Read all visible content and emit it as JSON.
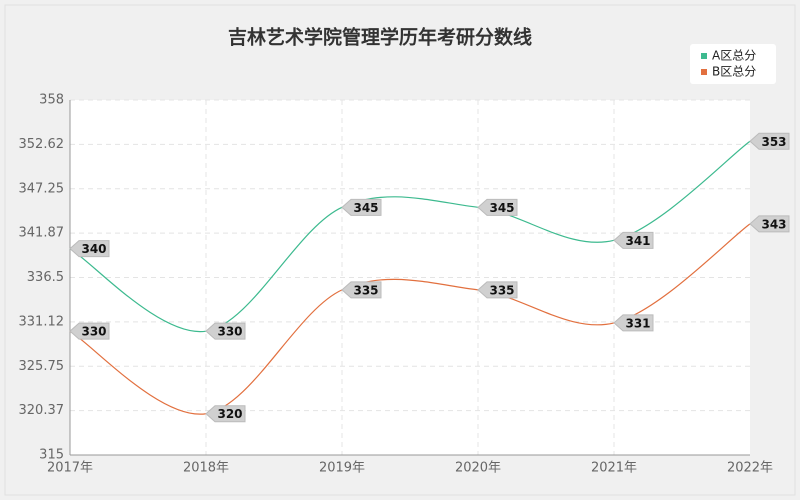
{
  "chart_data": {
    "type": "line",
    "title": "吉林艺术学院管理学历年考研分数线",
    "categories": [
      "2017年",
      "2018年",
      "2019年",
      "2020年",
      "2021年",
      "2022年"
    ],
    "series": [
      {
        "name": "A区总分",
        "color": "#3dba8f",
        "values": [
          340,
          330,
          345,
          345,
          341,
          353
        ]
      },
      {
        "name": "B区总分",
        "color": "#e2703f",
        "values": [
          330,
          320,
          335,
          335,
          331,
          343
        ]
      }
    ],
    "ylim": [
      315,
      358
    ],
    "yticks": [
      315,
      320.37,
      325.75,
      331.12,
      336.5,
      341.87,
      347.25,
      352.62,
      358
    ],
    "grid": true,
    "smooth": true,
    "legend": "top-right"
  }
}
